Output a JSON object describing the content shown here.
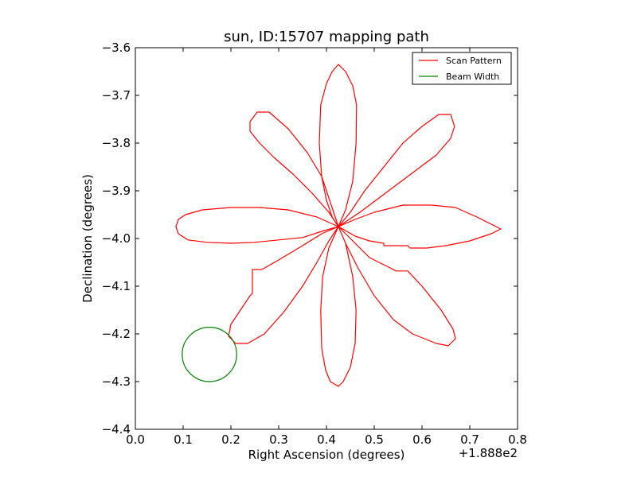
{
  "chart_data": {
    "type": "line",
    "title": "sun, ID:15707 mapping path",
    "xlabel": "Right Ascension (degrees)",
    "ylabel": "Declination (degrees)",
    "x_offset_label": "+1.888e2",
    "xlim": [
      0.0,
      0.8
    ],
    "ylim": [
      -4.4,
      -3.6
    ],
    "x_ticks": [
      "0.0",
      "0.1",
      "0.2",
      "0.3",
      "0.4",
      "0.5",
      "0.6",
      "0.7",
      "0.8"
    ],
    "y_ticks": [
      "−3.6",
      "−3.7",
      "−3.8",
      "−3.9",
      "−4.0",
      "−4.1",
      "−4.2",
      "−4.3",
      "−4.4"
    ],
    "grid": false,
    "legend_position": "top-right",
    "series": [
      {
        "name": "Scan Pattern",
        "color": "#ff0000",
        "x": [
          0.425,
          0.45,
          0.48,
          0.53,
          0.59,
          0.65,
          0.69,
          0.745,
          0.765,
          0.75,
          0.72,
          0.68,
          0.63,
          0.57,
          0.51,
          0.45,
          0.425
        ],
        "y": [
          -3.975,
          -3.968,
          -3.956,
          -3.936,
          -3.93,
          -3.928,
          -3.938,
          -3.965,
          -3.975,
          -3.99,
          -4.003,
          -4.015,
          -4.02,
          -4.018,
          -4.01,
          -3.995,
          -3.975
        ]
      },
      {
        "name": "Beam Width",
        "color": "#008000",
        "x": [
          0.211,
          0.205,
          0.188,
          0.164,
          0.155,
          0.13,
          0.113,
          0.106,
          0.113,
          0.13,
          0.155,
          0.18,
          0.197,
          0.204,
          0.211
        ],
        "y": [
          -4.243,
          -4.272,
          -4.293,
          -4.3,
          -4.3,
          -4.291,
          -4.272,
          -4.243,
          -4.214,
          -4.193,
          -4.185,
          -4.193,
          -4.214,
          -4.228,
          -4.243
        ]
      }
    ],
    "scan_path": [
      [
        0.425,
        -3.975
      ],
      [
        0.44,
        -3.94
      ],
      [
        0.455,
        -3.88
      ],
      [
        0.462,
        -3.8
      ],
      [
        0.463,
        -3.72
      ],
      [
        0.455,
        -3.68
      ],
      [
        0.44,
        -3.65
      ],
      [
        0.425,
        -3.635
      ],
      [
        0.412,
        -3.65
      ],
      [
        0.4,
        -3.675
      ],
      [
        0.388,
        -3.72
      ],
      [
        0.385,
        -3.8
      ],
      [
        0.39,
        -3.87
      ],
      [
        0.4,
        -3.92
      ],
      [
        0.412,
        -3.955
      ],
      [
        0.425,
        -3.975
      ],
      [
        0.45,
        -3.945
      ],
      [
        0.48,
        -3.9
      ],
      [
        0.52,
        -3.85
      ],
      [
        0.56,
        -3.8
      ],
      [
        0.6,
        -3.765
      ],
      [
        0.635,
        -3.74
      ],
      [
        0.66,
        -3.74
      ],
      [
        0.668,
        -3.765
      ],
      [
        0.66,
        -3.79
      ],
      [
        0.63,
        -3.825
      ],
      [
        0.59,
        -3.855
      ],
      [
        0.55,
        -3.885
      ],
      [
        0.51,
        -3.915
      ],
      [
        0.47,
        -3.945
      ],
      [
        0.425,
        -3.975
      ],
      [
        0.46,
        -3.96
      ],
      [
        0.5,
        -3.945
      ],
      [
        0.56,
        -3.93
      ],
      [
        0.62,
        -3.93
      ],
      [
        0.67,
        -3.935
      ],
      [
        0.715,
        -3.955
      ],
      [
        0.745,
        -3.97
      ],
      [
        0.765,
        -3.98
      ],
      [
        0.745,
        -3.99
      ],
      [
        0.7,
        -4.005
      ],
      [
        0.65,
        -4.015
      ],
      [
        0.61,
        -4.02
      ],
      [
        0.575,
        -4.02
      ],
      [
        0.57,
        -4.015
      ],
      [
        0.52,
        -4.015
      ],
      [
        0.52,
        -4.01
      ],
      [
        0.49,
        -4.005
      ],
      [
        0.46,
        -3.995
      ],
      [
        0.425,
        -3.975
      ],
      [
        0.455,
        -4.005
      ],
      [
        0.49,
        -4.04
      ],
      [
        0.54,
        -4.065
      ],
      [
        0.545,
        -4.068
      ],
      [
        0.57,
        -4.068
      ],
      [
        0.6,
        -4.1
      ],
      [
        0.64,
        -4.15
      ],
      [
        0.665,
        -4.19
      ],
      [
        0.67,
        -4.21
      ],
      [
        0.655,
        -4.225
      ],
      [
        0.63,
        -4.22
      ],
      [
        0.58,
        -4.2
      ],
      [
        0.54,
        -4.17
      ],
      [
        0.5,
        -4.12
      ],
      [
        0.465,
        -4.06
      ],
      [
        0.44,
        -4.01
      ],
      [
        0.425,
        -3.975
      ],
      [
        0.44,
        -4.01
      ],
      [
        0.455,
        -4.08
      ],
      [
        0.462,
        -4.15
      ],
      [
        0.46,
        -4.22
      ],
      [
        0.45,
        -4.27
      ],
      [
        0.435,
        -4.3
      ],
      [
        0.425,
        -4.31
      ],
      [
        0.408,
        -4.3
      ],
      [
        0.398,
        -4.275
      ],
      [
        0.39,
        -4.23
      ],
      [
        0.388,
        -4.15
      ],
      [
        0.392,
        -4.08
      ],
      [
        0.405,
        -4.02
      ],
      [
        0.425,
        -3.975
      ],
      [
        0.405,
        -4.005
      ],
      [
        0.38,
        -4.05
      ],
      [
        0.35,
        -4.1
      ],
      [
        0.31,
        -4.155
      ],
      [
        0.27,
        -4.2
      ],
      [
        0.235,
        -4.22
      ],
      [
        0.21,
        -4.22
      ],
      [
        0.195,
        -4.205
      ],
      [
        0.2,
        -4.18
      ],
      [
        0.22,
        -4.15
      ],
      [
        0.24,
        -4.12
      ],
      [
        0.245,
        -4.115
      ],
      [
        0.245,
        -4.065
      ],
      [
        0.265,
        -4.065
      ],
      [
        0.3,
        -4.045
      ],
      [
        0.35,
        -4.015
      ],
      [
        0.39,
        -3.99
      ],
      [
        0.425,
        -3.975
      ],
      [
        0.39,
        -3.985
      ],
      [
        0.35,
        -3.998
      ],
      [
        0.3,
        -4.003
      ],
      [
        0.25,
        -4.008
      ],
      [
        0.2,
        -4.01
      ],
      [
        0.15,
        -4.008
      ],
      [
        0.11,
        -4.003
      ],
      [
        0.09,
        -3.99
      ],
      [
        0.085,
        -3.975
      ],
      [
        0.09,
        -3.96
      ],
      [
        0.105,
        -3.95
      ],
      [
        0.14,
        -3.94
      ],
      [
        0.2,
        -3.935
      ],
      [
        0.26,
        -3.935
      ],
      [
        0.32,
        -3.94
      ],
      [
        0.38,
        -3.955
      ],
      [
        0.425,
        -3.975
      ],
      [
        0.405,
        -3.945
      ],
      [
        0.37,
        -3.905
      ],
      [
        0.33,
        -3.865
      ],
      [
        0.29,
        -3.83
      ],
      [
        0.26,
        -3.8
      ],
      [
        0.24,
        -3.775
      ],
      [
        0.24,
        -3.755
      ],
      [
        0.255,
        -3.735
      ],
      [
        0.28,
        -3.735
      ],
      [
        0.32,
        -3.77
      ],
      [
        0.36,
        -3.82
      ],
      [
        0.39,
        -3.87
      ],
      [
        0.41,
        -3.93
      ],
      [
        0.425,
        -3.975
      ]
    ],
    "beam_center": [
      0.155,
      -4.243
    ],
    "beam_radius": 0.057
  }
}
